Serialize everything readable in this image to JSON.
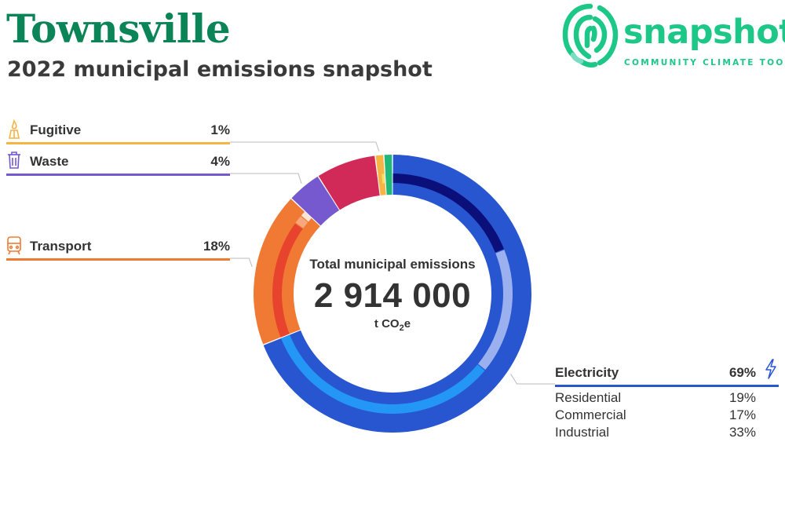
{
  "header": {
    "title": "Townsville",
    "subtitle": "2022 municipal emissions snapshot"
  },
  "logo": {
    "word": "snapshot",
    "tagline": "COMMUNITY CLIMATE TOOL",
    "color": "#1cc787"
  },
  "chart_data": {
    "type": "pie",
    "center": {
      "title": "Total municipal emissions",
      "value": "2 914 000",
      "unit_prefix": "t CO",
      "unit_sub": "2",
      "unit_suffix": "e"
    },
    "sectors": [
      {
        "label": "Electricity",
        "percent": 69,
        "color": "#2855d0",
        "icon": "lightning-icon",
        "subsectors": [
          {
            "label": "Residential",
            "percent": 19,
            "color": "#0b0f7a"
          },
          {
            "label": "Commercial",
            "percent": 17,
            "color": "#9bb0ee"
          },
          {
            "label": "Industrial",
            "percent": 33,
            "color": "#2496f5"
          }
        ]
      },
      {
        "label": "Transport",
        "percent": 18,
        "color": "#f07a33",
        "icon": "train-icon",
        "subsectors": [
          {
            "color": "#e8432c",
            "percent": 16
          },
          {
            "color": "#f7a77e",
            "percent": 1.2
          },
          {
            "color": "#fde4d3",
            "percent": 0.8
          }
        ]
      },
      {
        "label": "Waste",
        "percent": 4,
        "color": "#7658cf",
        "icon": "trash-can-icon",
        "subsectors": [
          {
            "color": "#7658cf",
            "percent": 4
          }
        ]
      },
      {
        "label": "",
        "percent": 7,
        "color": "#d22a58",
        "icon": "",
        "subsectors": [
          {
            "color": "#d22a58",
            "percent": 7
          }
        ]
      },
      {
        "label": "Fugitive",
        "percent": 1,
        "color": "#f5b444",
        "icon": "gas-flame-icon",
        "subsectors": [
          {
            "color": "#f5b444",
            "percent": 0.5
          },
          {
            "color": "#f5df6a",
            "percent": 0.5
          }
        ]
      },
      {
        "label": "",
        "percent": 1,
        "color": "#1fb87a",
        "icon": "",
        "subsectors": [
          {
            "color": "#1fb87a",
            "percent": 1
          }
        ]
      }
    ]
  }
}
